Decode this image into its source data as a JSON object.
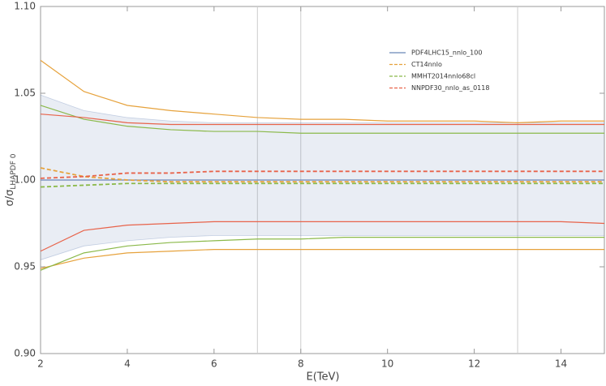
{
  "chart_data": {
    "type": "line",
    "x_label": "E(TeV)",
    "y_label": "σ/σ",
    "y_label_subscript": "LHAPDF 0",
    "x": [
      2,
      3,
      4,
      5,
      6,
      7,
      8,
      9,
      10,
      11,
      12,
      13,
      14,
      15
    ],
    "xlim": [
      2,
      15
    ],
    "xticks": [
      2,
      4,
      6,
      8,
      10,
      12,
      14
    ],
    "ylim": [
      0.9,
      1.1
    ],
    "yticks": [
      {
        "value": 0.9,
        "label": "0.90"
      },
      {
        "value": 0.95,
        "label": "0.95"
      },
      {
        "value": 1.0,
        "label": "1.00"
      },
      {
        "value": 1.05,
        "label": "1.05"
      },
      {
        "value": 1.1,
        "label": "1.10"
      }
    ],
    "vlines": [
      7,
      8,
      13
    ],
    "legend": "upper right",
    "series": [
      {
        "name": "PDF4LHC15_nnlo_100",
        "color": "#6b86b8",
        "style": "solid",
        "band": "fill",
        "values": [
          1.0,
          1.0,
          1.0,
          1.0,
          1.0,
          1.0,
          1.0,
          1.0,
          1.0,
          1.0,
          1.0,
          1.0,
          1.0,
          1.0
        ],
        "upper": [
          1.049,
          1.04,
          1.036,
          1.034,
          1.033,
          1.033,
          1.033,
          1.033,
          1.033,
          1.033,
          1.033,
          1.033,
          1.033,
          1.033
        ],
        "lower": [
          0.954,
          0.962,
          0.965,
          0.967,
          0.968,
          0.968,
          0.968,
          0.968,
          0.968,
          0.968,
          0.968,
          0.968,
          0.968,
          0.968
        ]
      },
      {
        "name": "CT14nnlo",
        "color": "#e6a23c",
        "style": "dashed",
        "band": "lines",
        "values": [
          1.007,
          1.002,
          1.0,
          0.999,
          0.999,
          0.999,
          0.999,
          0.999,
          0.999,
          0.999,
          0.999,
          0.999,
          0.999,
          0.999
        ],
        "upper": [
          1.069,
          1.051,
          1.043,
          1.04,
          1.038,
          1.036,
          1.035,
          1.035,
          1.034,
          1.034,
          1.034,
          1.033,
          1.034,
          1.034
        ],
        "lower": [
          0.949,
          0.955,
          0.958,
          0.959,
          0.96,
          0.96,
          0.96,
          0.96,
          0.96,
          0.96,
          0.96,
          0.96,
          0.96,
          0.96
        ]
      },
      {
        "name": "MMHT2014nnlo68cl",
        "color": "#8bb94a",
        "style": "dashed",
        "band": "lines",
        "values": [
          0.996,
          0.997,
          0.998,
          0.998,
          0.998,
          0.998,
          0.998,
          0.998,
          0.998,
          0.998,
          0.998,
          0.998,
          0.998,
          0.998
        ],
        "upper": [
          1.043,
          1.035,
          1.031,
          1.029,
          1.028,
          1.028,
          1.027,
          1.027,
          1.027,
          1.027,
          1.027,
          1.027,
          1.027,
          1.027
        ],
        "lower": [
          0.948,
          0.958,
          0.962,
          0.964,
          0.965,
          0.966,
          0.966,
          0.967,
          0.967,
          0.967,
          0.967,
          0.967,
          0.967,
          0.967
        ]
      },
      {
        "name": "NNPDF30_nnlo_as_0118",
        "color": "#e8634a",
        "style": "dashed",
        "band": "lines",
        "values": [
          1.001,
          1.002,
          1.004,
          1.004,
          1.005,
          1.005,
          1.005,
          1.005,
          1.005,
          1.005,
          1.005,
          1.005,
          1.005,
          1.005
        ],
        "upper": [
          1.038,
          1.036,
          1.033,
          1.032,
          1.032,
          1.032,
          1.032,
          1.032,
          1.032,
          1.032,
          1.032,
          1.032,
          1.032,
          1.032
        ],
        "lower": [
          0.959,
          0.971,
          0.974,
          0.975,
          0.976,
          0.976,
          0.976,
          0.976,
          0.976,
          0.976,
          0.976,
          0.976,
          0.976,
          0.975
        ]
      }
    ]
  }
}
